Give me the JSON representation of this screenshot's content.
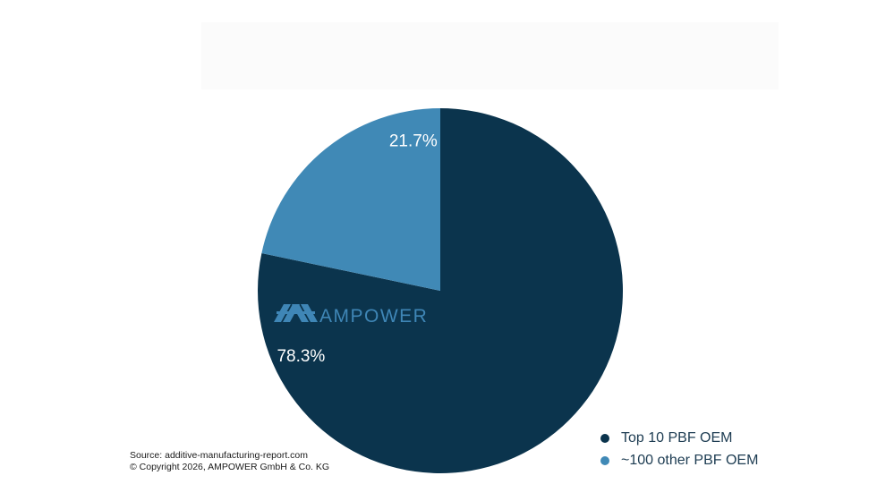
{
  "chart_data": {
    "type": "pie",
    "title": "",
    "slices": [
      {
        "label": "Top 10 PBF OEM",
        "value": 78.3,
        "display": "78.3%",
        "color": "#0b344d"
      },
      {
        "label": "~100 other PBF OEM",
        "value": 21.7,
        "display": "21.7%",
        "color": "#4089b6"
      }
    ],
    "start": "12 o'clock",
    "direction": "clockwise",
    "legend_position": "bottom-right"
  },
  "watermark": {
    "text": "AMPOWER",
    "color": "#3f86b6"
  },
  "source": {
    "line1": "Source: additive-manufacturing-report.com",
    "line2": "© Copyright 2026, AMPOWER GmbH & Co. KG"
  }
}
